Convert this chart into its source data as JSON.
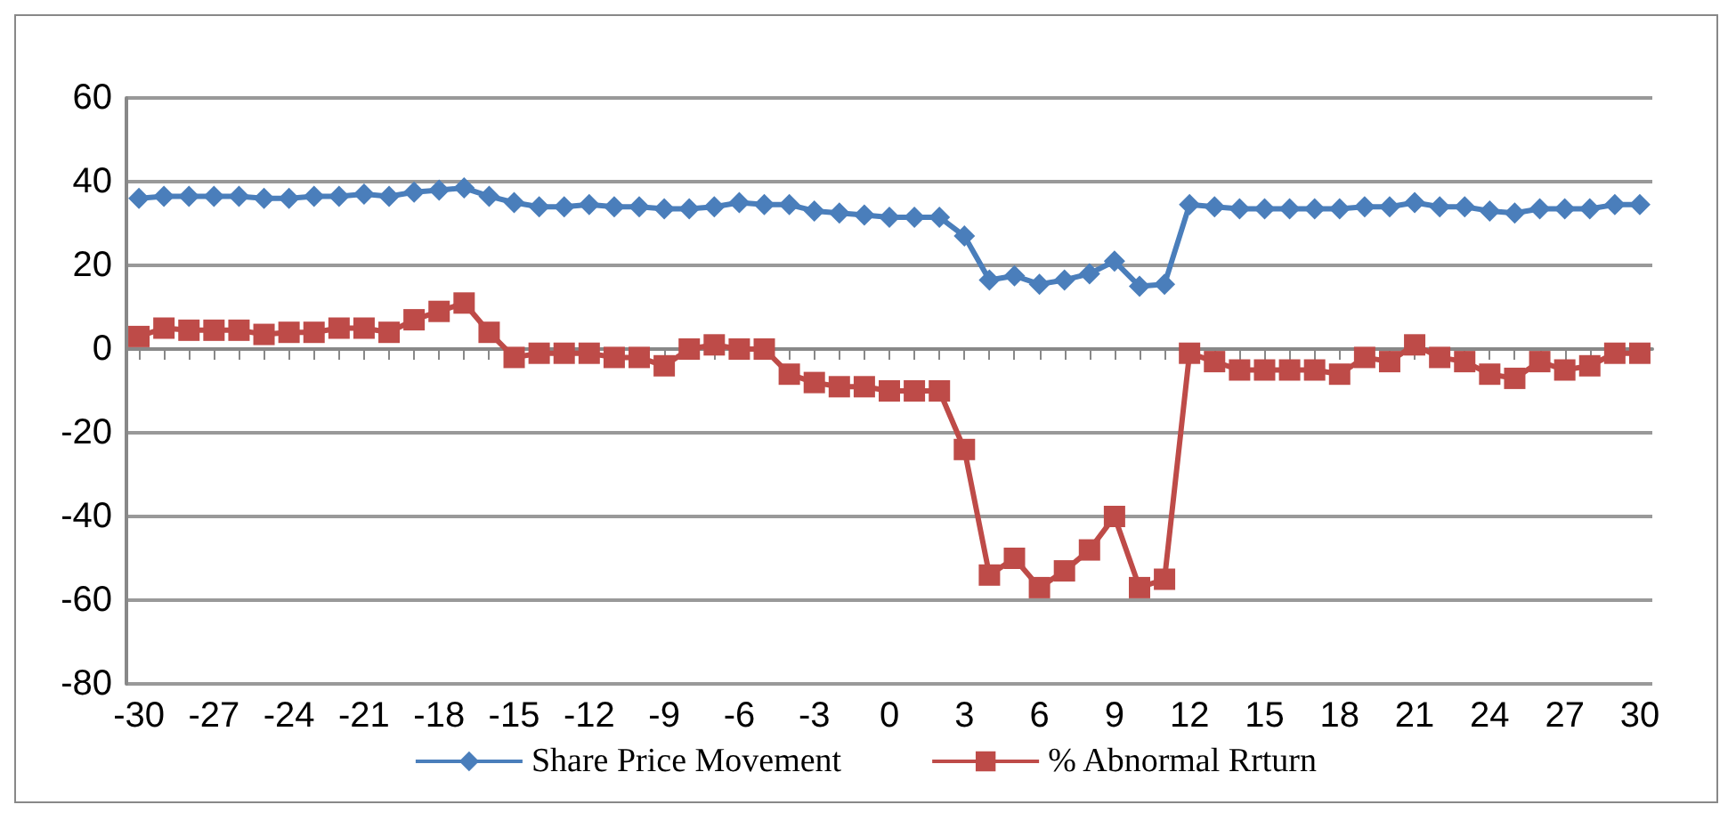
{
  "chart_data": {
    "type": "line",
    "categories": [
      "-30",
      null,
      null,
      "-27",
      null,
      null,
      "-24",
      null,
      null,
      "-21",
      null,
      null,
      "-18",
      null,
      null,
      "-15",
      null,
      null,
      "-12",
      null,
      null,
      "-9",
      null,
      null,
      "-6",
      null,
      null,
      "-3",
      null,
      null,
      "0",
      null,
      null,
      "3",
      null,
      null,
      "6",
      null,
      null,
      "9",
      null,
      null,
      "12",
      null,
      null,
      "15",
      null,
      null,
      "18",
      null,
      null,
      "21",
      null,
      null,
      "24",
      null,
      null,
      "27",
      null,
      null,
      "30"
    ],
    "series": [
      {
        "name": "Share Price Movement",
        "color": "#4a7ebb",
        "marker": "diamond",
        "values": [
          36,
          36.5,
          36.5,
          36.5,
          36.5,
          36,
          36,
          36.5,
          36.5,
          37,
          36.5,
          37.5,
          38,
          38.5,
          36.5,
          35,
          34,
          34,
          34.5,
          34,
          34,
          33.5,
          33.5,
          34,
          35,
          34.5,
          34.5,
          33,
          32.5,
          32,
          31.5,
          31.5,
          31.5,
          27,
          16.5,
          17.5,
          15.5,
          16.5,
          18,
          21,
          15,
          15.5,
          34.5,
          34,
          33.5,
          33.5,
          33.5,
          33.5,
          33.5,
          34,
          34,
          35,
          34,
          34,
          33,
          32.5,
          33.5,
          33.5,
          33.5,
          34.5,
          34.5
        ]
      },
      {
        "name": "% Abnormal Rrturn",
        "color": "#be4b48",
        "marker": "square",
        "values": [
          3,
          5,
          4.5,
          4.5,
          4.5,
          3.5,
          4,
          4,
          5,
          5,
          4,
          7,
          9,
          11,
          4,
          -2,
          -1,
          -1,
          -1,
          -2,
          -2,
          -4,
          0,
          1,
          0,
          0,
          -6,
          -8,
          -9,
          -9,
          -10,
          -10,
          -10,
          -24,
          -54,
          -50,
          -57,
          -53,
          -48,
          -40,
          -57,
          -55,
          -1,
          -3,
          -5,
          -5,
          -5,
          -5,
          -6,
          -2,
          -3,
          1,
          -2,
          -3,
          -6,
          -7,
          -3,
          -5,
          -4,
          -1,
          -1
        ]
      }
    ],
    "ylim": [
      -80,
      60
    ],
    "yticks": [
      -80,
      -60,
      -40,
      -20,
      0,
      20,
      40,
      60
    ],
    "grid": "y",
    "legend": "bottom",
    "line_style": "solid"
  }
}
